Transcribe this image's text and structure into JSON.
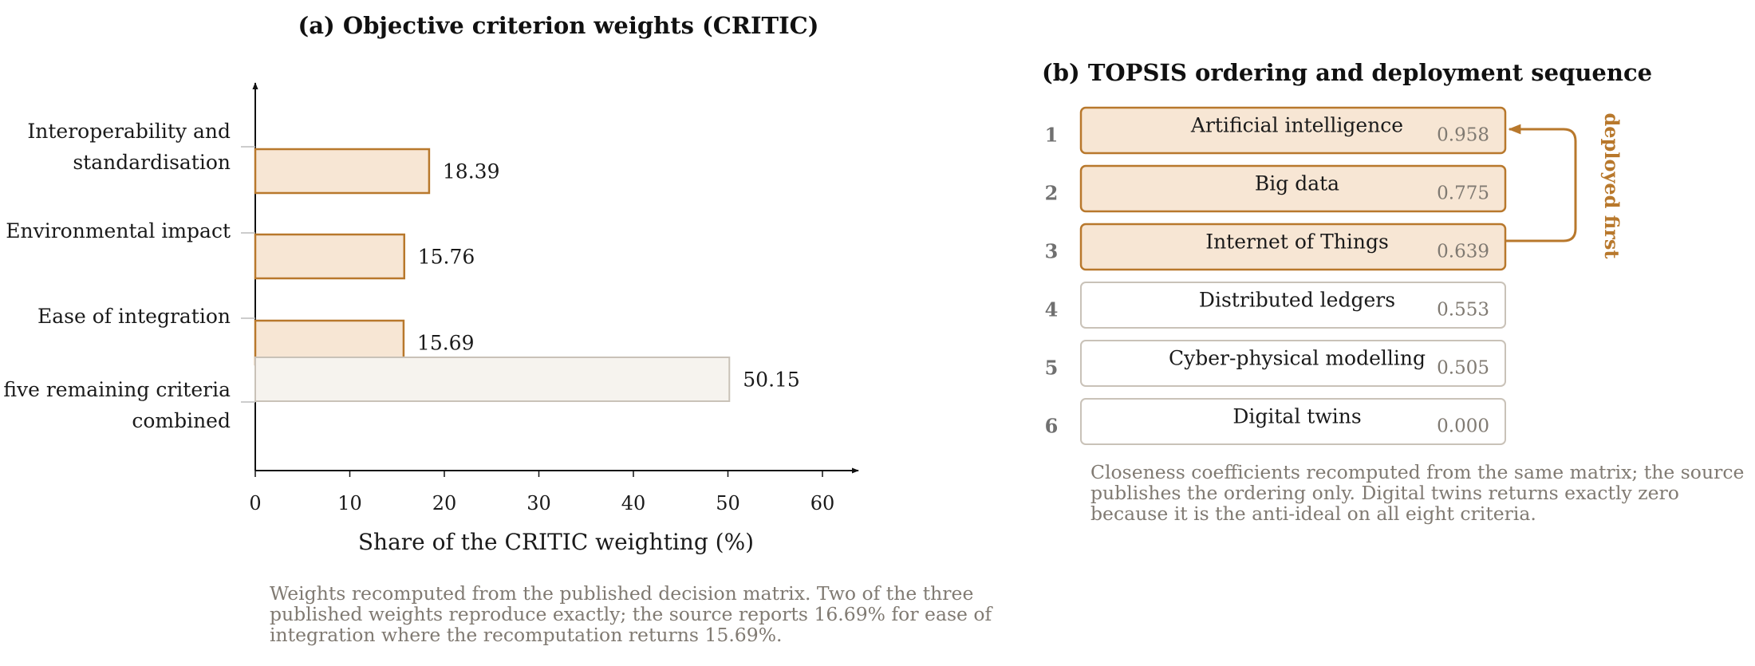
{
  "colors": {
    "accent": "#b8782c",
    "highlight_fill": "#f7e6d4",
    "rest_fill": "#f6f3ee",
    "rest_stroke": "#c9c2b8",
    "note_text": "#807a72"
  },
  "chart_data": [
    {
      "type": "bar",
      "orientation": "horizontal",
      "title": "(a) Objective criterion weights (CRITIC)",
      "xlabel": "Share of the CRITIC weighting (%)",
      "ylabel": "",
      "xlim": [
        0,
        60
      ],
      "xticks": [
        0,
        10,
        20,
        30,
        40,
        50,
        60
      ],
      "grid": false,
      "categories": [
        [
          "Interoperability and",
          "standardisation"
        ],
        [
          "Environmental impact"
        ],
        [
          "Ease of integration"
        ],
        [
          "five remaining criteria",
          "combined"
        ]
      ],
      "values": [
        18.39,
        15.76,
        15.69,
        50.15
      ],
      "value_labels": [
        "18.39",
        "15.76",
        "15.69",
        "50.15"
      ],
      "highlighted": [
        true,
        true,
        true,
        false
      ],
      "note": [
        "Weights recomputed from the published decision matrix. Two of the three",
        "published weights reproduce exactly; the source reports 16.69% for ease of",
        "integration where the recomputation returns 15.69%."
      ]
    },
    {
      "type": "table",
      "title": "(b) TOPSIS ordering and deployment sequence",
      "rows": [
        {
          "rank": "1",
          "name": "Artificial intelligence",
          "score": 0.958,
          "score_label": "0.958",
          "deployed_first": true
        },
        {
          "rank": "2",
          "name": "Big data",
          "score": 0.775,
          "score_label": "0.775",
          "deployed_first": true
        },
        {
          "rank": "3",
          "name": "Internet of Things",
          "score": 0.639,
          "score_label": "0.639",
          "deployed_first": true
        },
        {
          "rank": "4",
          "name": "Distributed ledgers",
          "score": 0.553,
          "score_label": "0.553",
          "deployed_first": false
        },
        {
          "rank": "5",
          "name": "Cyber-physical modelling",
          "score": 0.505,
          "score_label": "0.505",
          "deployed_first": false
        },
        {
          "rank": "6",
          "name": "Digital twins",
          "score": 0.0,
          "score_label": "0.000",
          "deployed_first": false
        }
      ],
      "bracket_label": "deployed first",
      "note": [
        "Closeness coefficients recomputed from the same matrix; the source",
        "publishes the ordering only. Digital twins returns exactly zero",
        "because it is the anti-ideal on all eight criteria."
      ]
    }
  ]
}
